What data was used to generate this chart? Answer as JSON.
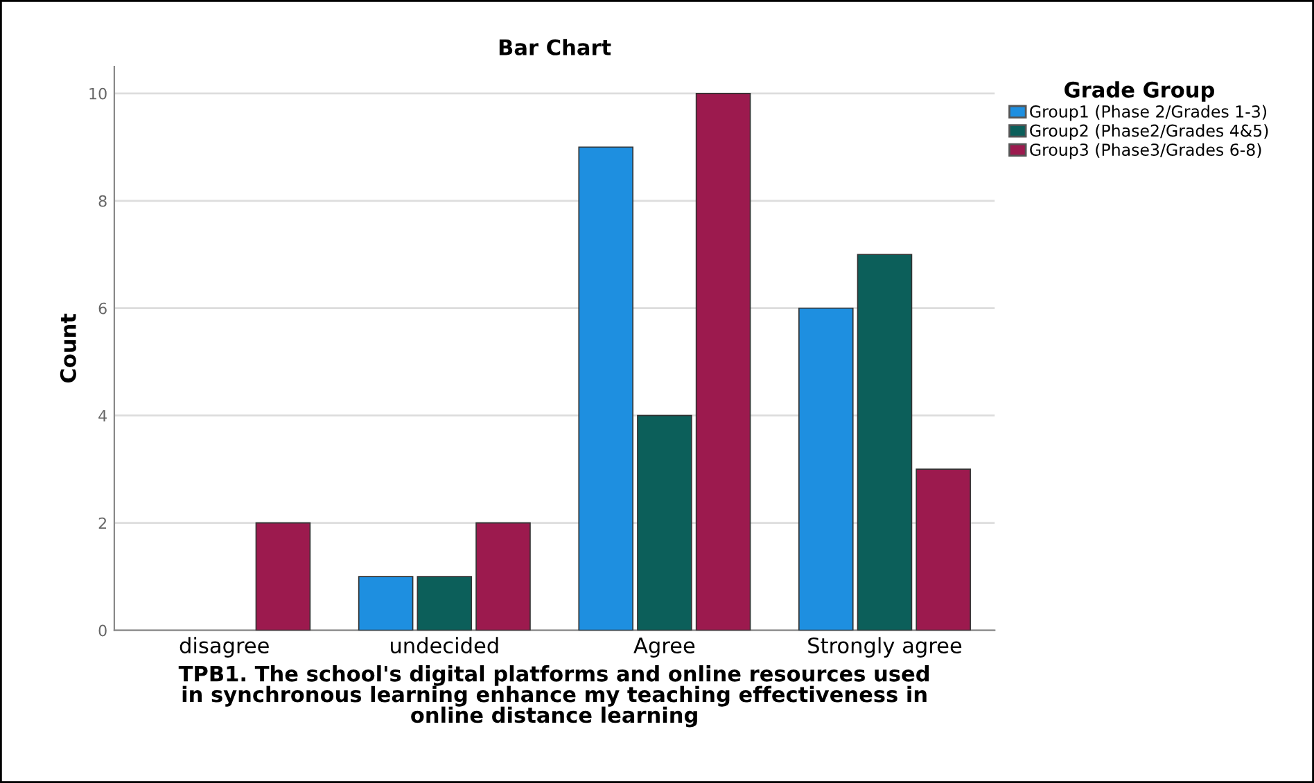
{
  "chart_data": {
    "type": "bar",
    "title": "Bar Chart",
    "xlabel": "TPB1. The school's digital platforms and online resources used\nin synchronous learning enhance my teaching effectiveness in\nonline distance learning",
    "ylabel": "Count",
    "legend_title": "Grade Group",
    "categories": [
      "disagree",
      "undecided",
      "Agree",
      "Strongly agree"
    ],
    "series": [
      {
        "name": "Group1 (Phase 2/Grades 1-3)",
        "color": "#1e8fe0",
        "values": [
          0,
          1,
          9,
          6
        ]
      },
      {
        "name": "Group2 (Phase2/Grades 4&5)",
        "color": "#0c5f5a",
        "values": [
          0,
          1,
          4,
          7
        ]
      },
      {
        "name": "Group3 (Phase3/Grades 6-8)",
        "color": "#9c1a4e",
        "values": [
          2,
          2,
          10,
          3
        ]
      }
    ],
    "ylim": [
      0,
      10.5
    ],
    "yticks": [
      0,
      2,
      4,
      6,
      8,
      10
    ],
    "grid": "y",
    "legend": "top right"
  }
}
